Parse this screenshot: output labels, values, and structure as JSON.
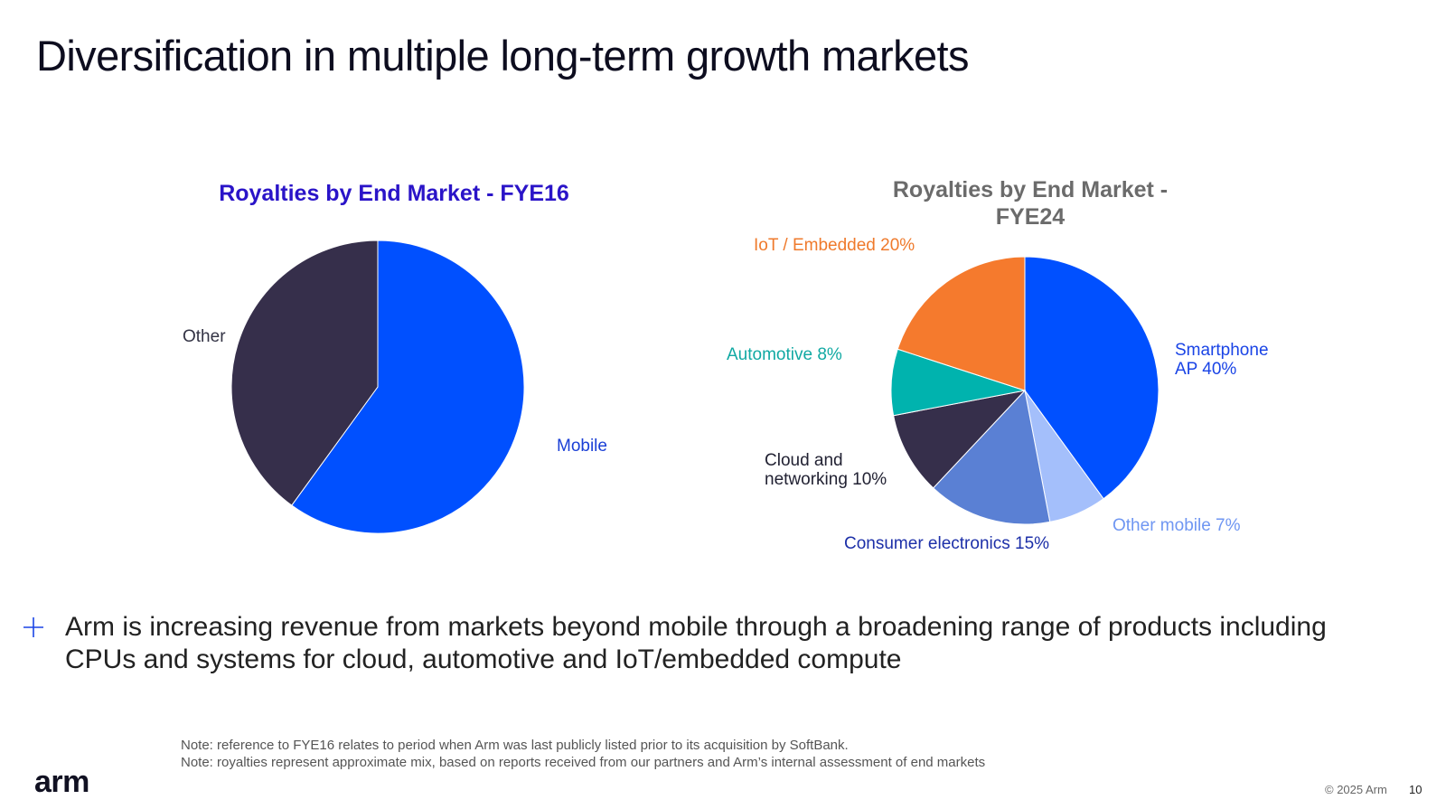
{
  "slide": {
    "title": "Diversification in multiple long-term growth markets"
  },
  "chart_data": [
    {
      "type": "pie",
      "title": "Royalties by End Market - FYE16",
      "title_color": "#2a14c8",
      "slices": [
        {
          "label": "Mobile",
          "value": 60,
          "color": "#0050ff",
          "label_color": "#1a3fd6"
        },
        {
          "label": "Other",
          "value": 40,
          "color": "#362f4b",
          "label_color": "#333344"
        }
      ]
    },
    {
      "type": "pie",
      "title_lines": [
        "Royalties by End Market -",
        "FYE24"
      ],
      "title_color": "#6b6b6b",
      "slices": [
        {
          "label_lines": [
            "Smartphone",
            "AP 40%"
          ],
          "value": 40,
          "color": "#0050ff",
          "label_color": "#1a44e6"
        },
        {
          "label_lines": [
            "Other mobile 7%"
          ],
          "value": 7,
          "color": "#a4bffb",
          "label_color": "#6f96f2"
        },
        {
          "label_lines": [
            "Consumer electronics 15%"
          ],
          "value": 15,
          "color": "#5a80d4",
          "label_color": "#1c2fa8"
        },
        {
          "label_lines": [
            "Cloud and",
            "networking 10%"
          ],
          "value": 10,
          "color": "#362f4b",
          "label_color": "#222233"
        },
        {
          "label_lines": [
            "Automotive 8%"
          ],
          "value": 8,
          "color": "#00b3ae",
          "label_color": "#11a9a3"
        },
        {
          "label_lines": [
            "IoT / Embedded 20%"
          ],
          "value": 20,
          "color": "#f57a2d",
          "label_color": "#ef7a2c"
        }
      ]
    }
  ],
  "bullet": {
    "text": "Arm is increasing revenue from markets beyond mobile through a broadening range of products including CPUs and systems for cloud, automotive and IoT/embedded compute"
  },
  "notes": {
    "line1": "Note: reference to FYE16 relates to period when Arm was last publicly listed prior to its acquisition by SoftBank.",
    "line2": "Note: royalties represent approximate mix, based on reports received from our partners and Arm’s internal assessment of end markets"
  },
  "footer": {
    "logo": "arm",
    "copyright": "© 2025 Arm",
    "page": "10"
  }
}
